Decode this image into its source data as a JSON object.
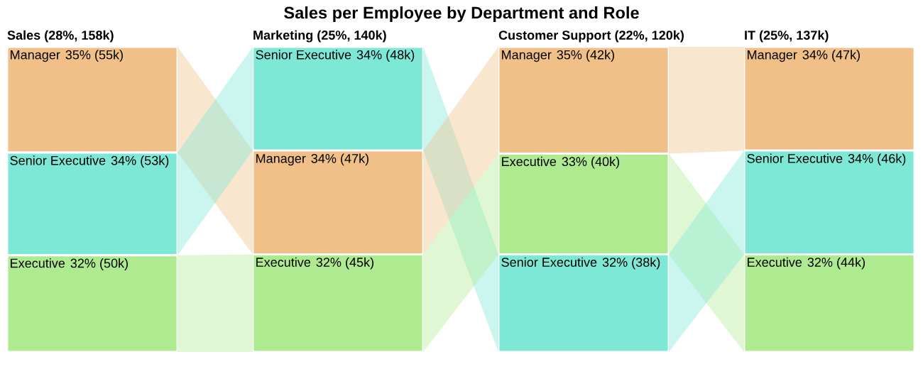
{
  "chart_data": [
    {
      "type": "other",
      "title": "Sales per Employee by Department and Role",
      "subtitle": "Sales (28%, 158k)",
      "categories": [
        "Manager",
        "Senior Executive",
        "Executive"
      ],
      "colors": [
        "#f0c088",
        "#7de8d6",
        "#aeea90"
      ],
      "values": [
        35,
        34,
        32
      ],
      "value_labels": [
        "35% (55k)",
        "34% (53k)",
        "32% (50k)"
      ]
    },
    {
      "type": "other",
      "subtitle": "Marketing (25%, 140k)",
      "categories": [
        "Senior Executive",
        "Manager",
        "Executive"
      ],
      "colors": [
        "#7de8d6",
        "#f0c088",
        "#aeea90"
      ],
      "values": [
        34,
        34,
        32
      ],
      "value_labels": [
        "34% (48k)",
        "34% (47k)",
        "32% (45k)"
      ]
    },
    {
      "type": "other",
      "subtitle": "Customer Support (22%, 120k)",
      "categories": [
        "Manager",
        "Executive",
        "Senior Executive"
      ],
      "colors": [
        "#f0c088",
        "#aeea90",
        "#7de8d6"
      ],
      "values": [
        35,
        33,
        32
      ],
      "value_labels": [
        "35% (42k)",
        "33% (40k)",
        "32% (38k)"
      ]
    },
    {
      "type": "other",
      "subtitle": "IT (25%, 137k)",
      "categories": [
        "Manager",
        "Senior Executive",
        "Executive"
      ],
      "colors": [
        "#f0c088",
        "#7de8d6",
        "#aeea90"
      ],
      "values": [
        34,
        34,
        32
      ],
      "value_labels": [
        "34% (47k)",
        "34% (46k)",
        "32% (44k)"
      ]
    }
  ]
}
